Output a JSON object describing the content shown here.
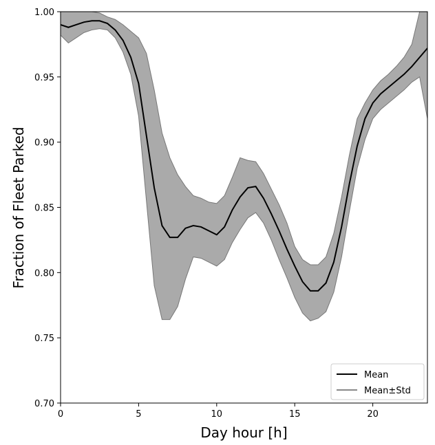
{
  "chart_data": {
    "type": "line",
    "title": "",
    "xlabel": "Day hour [h]",
    "ylabel": "Fraction of Fleet Parked",
    "xlim": [
      0,
      23.5
    ],
    "ylim": [
      0.7,
      1.0
    ],
    "x_ticks": [
      0,
      5,
      10,
      15,
      20
    ],
    "y_ticks": [
      0.7,
      0.75,
      0.8,
      0.85,
      0.9,
      0.95,
      1.0
    ],
    "x_tick_labels": [
      "0",
      "5",
      "10",
      "15",
      "20"
    ],
    "y_tick_labels": [
      "0.70",
      "0.75",
      "0.80",
      "0.85",
      "0.90",
      "0.95",
      "1.00"
    ],
    "grid": false,
    "legend_position": "bottom-right",
    "x": [
      0,
      0.5,
      1,
      1.5,
      2,
      2.5,
      3,
      3.5,
      4,
      4.5,
      5,
      5.5,
      6,
      6.5,
      7,
      7.5,
      8,
      8.5,
      9,
      9.5,
      10,
      10.5,
      11,
      11.5,
      12,
      12.5,
      13,
      13.5,
      14,
      14.5,
      15,
      15.5,
      16,
      16.5,
      17,
      17.5,
      18,
      18.5,
      19,
      19.5,
      20,
      20.5,
      21,
      21.5,
      22,
      22.5,
      23,
      23.5
    ],
    "series": [
      {
        "name": "Mean",
        "color": "#000000",
        "values": [
          0.99,
          0.988,
          0.99,
          0.992,
          0.993,
          0.993,
          0.991,
          0.986,
          0.978,
          0.965,
          0.945,
          0.905,
          0.865,
          0.836,
          0.827,
          0.827,
          0.834,
          0.836,
          0.835,
          0.832,
          0.829,
          0.835,
          0.848,
          0.858,
          0.865,
          0.866,
          0.857,
          0.845,
          0.832,
          0.818,
          0.805,
          0.793,
          0.786,
          0.786,
          0.792,
          0.808,
          0.835,
          0.868,
          0.897,
          0.918,
          0.93,
          0.937,
          0.942,
          0.947,
          0.952,
          0.958,
          0.965,
          0.972
        ]
      },
      {
        "name": "Mean±Std",
        "color": "#999999",
        "upper": [
          1.0,
          1.0,
          1.0,
          1.0,
          1.0,
          0.999,
          0.996,
          0.994,
          0.99,
          0.985,
          0.98,
          0.968,
          0.94,
          0.907,
          0.888,
          0.875,
          0.866,
          0.859,
          0.857,
          0.854,
          0.853,
          0.859,
          0.873,
          0.888,
          0.886,
          0.885,
          0.876,
          0.864,
          0.852,
          0.838,
          0.82,
          0.81,
          0.806,
          0.806,
          0.812,
          0.83,
          0.858,
          0.89,
          0.918,
          0.93,
          0.94,
          0.947,
          0.952,
          0.958,
          0.965,
          0.975,
          1.0,
          1.0
        ],
        "lower": [
          0.982,
          0.976,
          0.98,
          0.984,
          0.986,
          0.987,
          0.986,
          0.98,
          0.969,
          0.952,
          0.92,
          0.855,
          0.79,
          0.764,
          0.764,
          0.774,
          0.795,
          0.812,
          0.811,
          0.808,
          0.805,
          0.81,
          0.823,
          0.833,
          0.842,
          0.846,
          0.838,
          0.825,
          0.81,
          0.796,
          0.781,
          0.769,
          0.763,
          0.765,
          0.77,
          0.785,
          0.812,
          0.847,
          0.88,
          0.902,
          0.918,
          0.925,
          0.93,
          0.935,
          0.94,
          0.946,
          0.95,
          0.918
        ]
      }
    ],
    "legend": [
      {
        "label": "Mean",
        "style": "line",
        "color": "#000000"
      },
      {
        "label": "Mean±Std",
        "style": "band",
        "color": "#999999"
      }
    ]
  }
}
